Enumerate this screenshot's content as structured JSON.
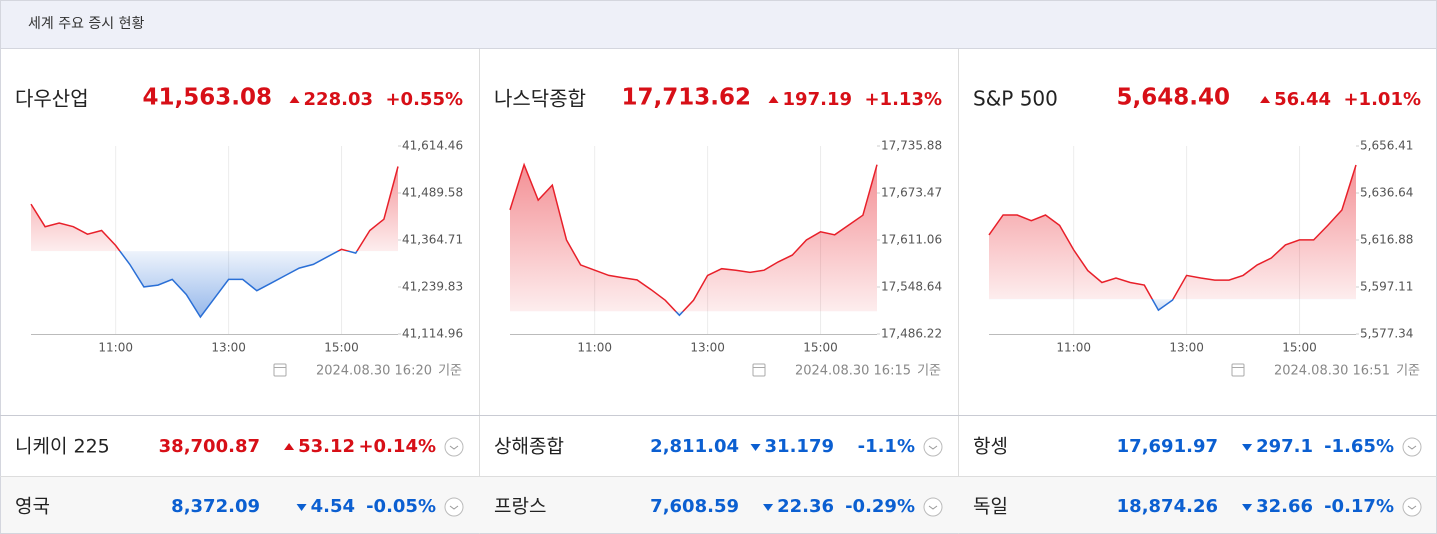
{
  "header": {
    "title": "세계 주요 증시 현황"
  },
  "panels": [
    {
      "name": "다우산업",
      "value": "41,563.08",
      "change": "228.03",
      "percent": "+0.55%",
      "direction": "up",
      "timestamp": "2024.08.30 16:20",
      "timestamp_suffix": "기준"
    },
    {
      "name": "나스닥종합",
      "value": "17,713.62",
      "change": "197.19",
      "percent": "+1.13%",
      "direction": "up",
      "timestamp": "2024.08.30 16:15",
      "timestamp_suffix": "기준"
    },
    {
      "name": "S&P 500",
      "value": "5,648.40",
      "change": "56.44",
      "percent": "+1.01%",
      "direction": "up",
      "timestamp": "2024.08.30 16:51",
      "timestamp_suffix": "기준"
    }
  ],
  "chart_data": [
    {
      "type": "line",
      "up_color": "#e8202a",
      "down_color": "#2a6fd6",
      "x": [
        "09:30",
        "09:45",
        "10:00",
        "10:15",
        "10:30",
        "10:45",
        "11:00",
        "11:15",
        "11:30",
        "11:45",
        "12:00",
        "12:15",
        "12:30",
        "12:45",
        "13:00",
        "13:15",
        "13:30",
        "13:45",
        "14:00",
        "14:15",
        "14:30",
        "14:45",
        "15:00",
        "15:15",
        "15:30",
        "15:45",
        "16:00"
      ],
      "values": [
        41460,
        41400,
        41410,
        41400,
        41380,
        41390,
        41350,
        41300,
        41240,
        41245,
        41260,
        41220,
        41160,
        41210,
        41260,
        41260,
        41230,
        41250,
        41270,
        41290,
        41300,
        41320,
        41340,
        41330,
        41390,
        41420,
        41560
      ],
      "xlim": [
        "09:30",
        "16:00"
      ],
      "xticks": [
        "11:00",
        "13:00",
        "15:00"
      ],
      "ylim": [
        41114.96,
        41614.46
      ],
      "yticks": [
        {
          "value": 41114.96,
          "label": "41,114.96"
        },
        {
          "value": 41239.83,
          "label": "41,239.83"
        },
        {
          "value": 41364.71,
          "label": "41,364.71"
        },
        {
          "value": 41489.58,
          "label": "41,489.58"
        },
        {
          "value": 41614.46,
          "label": "41,614.46"
        }
      ]
    },
    {
      "type": "line",
      "up_color": "#e8202a",
      "down_color": "#2a6fd6",
      "x": [
        "09:30",
        "09:45",
        "10:00",
        "10:15",
        "10:30",
        "10:45",
        "11:00",
        "11:15",
        "11:30",
        "11:45",
        "12:00",
        "12:15",
        "12:30",
        "12:45",
        "13:00",
        "13:15",
        "13:30",
        "13:45",
        "14:00",
        "14:15",
        "14:30",
        "14:45",
        "15:00",
        "15:15",
        "15:30",
        "15:45",
        "16:00"
      ],
      "values": [
        17651,
        17711,
        17664,
        17684,
        17611,
        17578,
        17571,
        17564,
        17561,
        17558,
        17545,
        17531,
        17511,
        17531,
        17564,
        17573,
        17571,
        17568,
        17571,
        17582,
        17591,
        17611,
        17622,
        17618,
        17631,
        17644,
        17711
      ],
      "xlim": [
        "09:30",
        "16:00"
      ],
      "xticks": [
        "11:00",
        "13:00",
        "15:00"
      ],
      "ylim": [
        17486.22,
        17735.88
      ],
      "yticks": [
        {
          "value": 17486.22,
          "label": "17,486.22"
        },
        {
          "value": 17548.64,
          "label": "17,548.64"
        },
        {
          "value": 17611.06,
          "label": "17,611.06"
        },
        {
          "value": 17673.47,
          "label": "17,673.47"
        },
        {
          "value": 17735.88,
          "label": "17,735.88"
        }
      ]
    },
    {
      "type": "line",
      "up_color": "#e8202a",
      "down_color": "#2a6fd6",
      "x": [
        "09:30",
        "09:45",
        "10:00",
        "10:15",
        "10:30",
        "10:45",
        "11:00",
        "11:15",
        "11:30",
        "11:45",
        "12:00",
        "12:15",
        "12:30",
        "12:45",
        "13:00",
        "13:15",
        "13:30",
        "13:45",
        "14:00",
        "14:15",
        "14:30",
        "14:45",
        "15:00",
        "15:15",
        "15:30",
        "15:45",
        "16:00"
      ],
      "values": [
        5619,
        5627.4,
        5627.4,
        5625,
        5627.4,
        5623,
        5612.7,
        5604,
        5599,
        5600.9,
        5599,
        5597.9,
        5587.4,
        5591.6,
        5602,
        5600.9,
        5600,
        5600,
        5602,
        5606.4,
        5609.3,
        5614.8,
        5616.9,
        5616.9,
        5623,
        5629.5,
        5648.4
      ],
      "xlim": [
        "09:30",
        "16:00"
      ],
      "xticks": [
        "11:00",
        "13:00",
        "15:00"
      ],
      "ylim": [
        5577.34,
        5656.41
      ],
      "yticks": [
        {
          "value": 5577.34,
          "label": "5,577.34"
        },
        {
          "value": 5597.11,
          "label": "5,597.11"
        },
        {
          "value": 5616.88,
          "label": "5,616.88"
        },
        {
          "value": 5636.64,
          "label": "5,636.64"
        },
        {
          "value": 5656.41,
          "label": "5,656.41"
        }
      ]
    }
  ],
  "list": [
    {
      "name": "니케이 225",
      "value": "38,700.87",
      "change": "53.12",
      "percent": "+0.14%",
      "direction": "up"
    },
    {
      "name": "상해종합",
      "value": "2,811.04",
      "change": "31.179",
      "percent": "-1.1%",
      "direction": "down"
    },
    {
      "name": "항셍",
      "value": "17,691.97",
      "change": "297.1",
      "percent": "-1.65%",
      "direction": "down"
    },
    {
      "name": "영국",
      "value": "8,372.09",
      "change": "4.54",
      "percent": "-0.05%",
      "direction": "down"
    },
    {
      "name": "프랑스",
      "value": "7,608.59",
      "change": "22.36",
      "percent": "-0.29%",
      "direction": "down"
    },
    {
      "name": "독일",
      "value": "18,874.26",
      "change": "32.66",
      "percent": "-0.17%",
      "direction": "down"
    }
  ]
}
